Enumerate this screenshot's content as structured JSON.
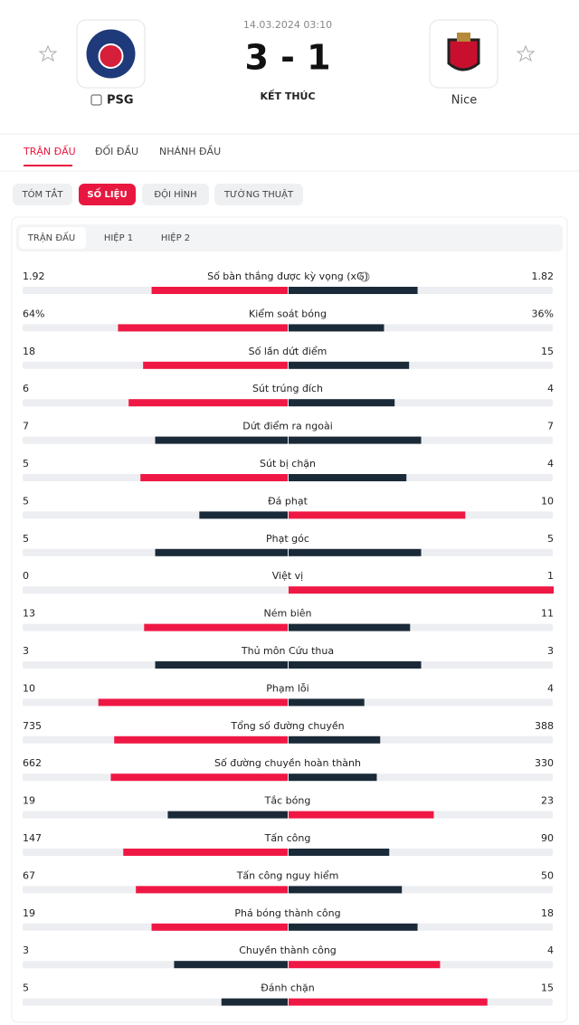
{
  "header": {
    "datetime": "14.03.2024 03:10",
    "score": "3 - 1",
    "status": "KẾT THÚC",
    "home_team": "PSG",
    "away_team": "Nice"
  },
  "tabs": [
    "TRẬN ĐẤU",
    "ĐỐI ĐẦU",
    "NHÁNH ĐẦU"
  ],
  "pills": [
    "TÓM TẮT",
    "SỐ LIỆU",
    "ĐỘI HÌNH",
    "TƯỜNG THUẬT"
  ],
  "subtabs": [
    "TRẬN ĐẤU",
    "HIỆP 1",
    "HIỆP 2"
  ],
  "stats": [
    {
      "label": "Số bàn thắng được kỳ vọng (xG)",
      "home": 1.92,
      "away": 1.82
    },
    {
      "label": "Kiểm soát bóng",
      "home": {
        "value": 64,
        "label": "64%"
      },
      "away": {
        "value": 36,
        "label": "36%"
      }
    },
    {
      "label": "Số lần dứt điểm",
      "home": 18,
      "away": 15
    },
    {
      "label": "Sút trúng đích",
      "home": 6,
      "away": 4
    },
    {
      "label": "Dứt điểm ra ngoài",
      "home": 7,
      "away": 7
    },
    {
      "label": "Sút bị chặn",
      "home": 5,
      "away": 4
    },
    {
      "label": "Đá phạt",
      "home": 5,
      "away": 10
    },
    {
      "label": "Phạt góc",
      "home": 5,
      "away": 5
    },
    {
      "label": "Việt vị",
      "home": 0,
      "away": 1
    },
    {
      "label": "Ném biên",
      "home": 13,
      "away": 11
    },
    {
      "label": "Thủ môn Cứu thua",
      "home": 3,
      "away": 3
    },
    {
      "label": "Phạm lỗi",
      "home": 10,
      "away": 4
    },
    {
      "label": "Tổng số đường chuyền",
      "home": 735,
      "away": 388
    },
    {
      "label": "Số đường chuyền hoàn thành",
      "home": 662,
      "away": 330
    },
    {
      "label": "Tắc bóng",
      "home": 19,
      "away": 23
    },
    {
      "label": "Tấn công",
      "home": 147,
      "away": 90
    },
    {
      "label": "Tấn công nguy hiểm",
      "home": 67,
      "away": 50
    },
    {
      "label": "Phá bóng thành công",
      "home": 19,
      "away": 18
    },
    {
      "label": "Chuyền thành công",
      "home": 3,
      "away": 4
    },
    {
      "label": "Đánh chặn",
      "home": 5,
      "away": 15
    }
  ]
}
